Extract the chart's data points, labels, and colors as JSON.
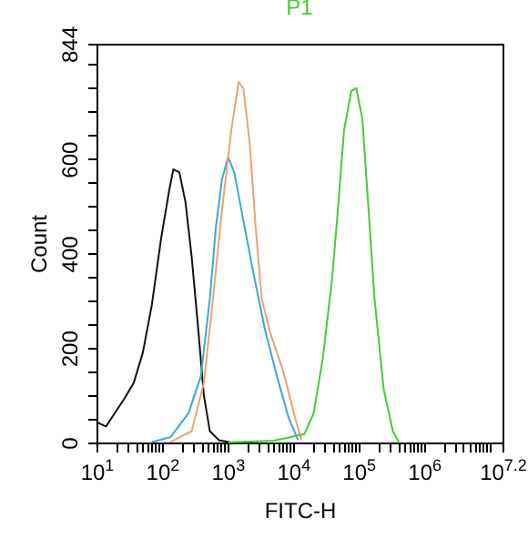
{
  "chart_data": {
    "type": "line",
    "title": "P1",
    "xlabel": "FITC-H",
    "ylabel": "Count",
    "log": "x",
    "grid": false,
    "legend": false,
    "marker": "none",
    "line_style": "solid",
    "xlim": [
      10,
      15848932
    ],
    "ylim": [
      0,
      844
    ],
    "xticks": [
      {
        "value": 10,
        "label": "10$^{1}$"
      },
      {
        "value": 20,
        "label": null
      },
      {
        "value": 30,
        "label": null
      },
      {
        "value": 40,
        "label": null
      },
      {
        "value": 50,
        "label": null
      },
      {
        "value": 60,
        "label": null
      },
      {
        "value": 70,
        "label": null
      },
      {
        "value": 80,
        "label": null
      },
      {
        "value": 90,
        "label": null
      },
      {
        "value": 100,
        "label": "10$^{2}$"
      },
      {
        "value": 200,
        "label": null
      },
      {
        "value": 300,
        "label": null
      },
      {
        "value": 400,
        "label": null
      },
      {
        "value": 500,
        "label": null
      },
      {
        "value": 600,
        "label": null
      },
      {
        "value": 700,
        "label": null
      },
      {
        "value": 800,
        "label": null
      },
      {
        "value": 900,
        "label": null
      },
      {
        "value": 1000,
        "label": "10$^{3}$"
      },
      {
        "value": 2000,
        "label": null
      },
      {
        "value": 3000,
        "label": null
      },
      {
        "value": 4000,
        "label": null
      },
      {
        "value": 5000,
        "label": null
      },
      {
        "value": 6000,
        "label": null
      },
      {
        "value": 7000,
        "label": null
      },
      {
        "value": 8000,
        "label": null
      },
      {
        "value": 9000,
        "label": null
      },
      {
        "value": 10000,
        "label": "10$^{4}$"
      },
      {
        "value": 20000,
        "label": null
      },
      {
        "value": 30000,
        "label": null
      },
      {
        "value": 40000,
        "label": null
      },
      {
        "value": 50000,
        "label": null
      },
      {
        "value": 60000,
        "label": null
      },
      {
        "value": 70000,
        "label": null
      },
      {
        "value": 80000,
        "label": null
      },
      {
        "value": 90000,
        "label": null
      },
      {
        "value": 100000,
        "label": "10$^{5}$"
      },
      {
        "value": 200000,
        "label": null
      },
      {
        "value": 300000,
        "label": null
      },
      {
        "value": 400000,
        "label": null
      },
      {
        "value": 500000,
        "label": null
      },
      {
        "value": 600000,
        "label": null
      },
      {
        "value": 700000,
        "label": null
      },
      {
        "value": 800000,
        "label": null
      },
      {
        "value": 900000,
        "label": null
      },
      {
        "value": 1000000,
        "label": "10$^{6}$"
      },
      {
        "value": 2000000,
        "label": null
      },
      {
        "value": 3000000,
        "label": null
      },
      {
        "value": 4000000,
        "label": null
      },
      {
        "value": 5000000,
        "label": null
      },
      {
        "value": 6000000,
        "label": null
      },
      {
        "value": 7000000,
        "label": null
      },
      {
        "value": 8000000,
        "label": null
      },
      {
        "value": 9000000,
        "label": null
      },
      {
        "value": 10000000,
        "label": null
      },
      {
        "value": 15848932,
        "label": "10$^{7.2}$"
      }
    ],
    "yticks": [
      0,
      {
        "value": 50,
        "label": null
      },
      {
        "value": 100,
        "label": null
      },
      {
        "value": 150,
        "label": null
      },
      200,
      {
        "value": 250,
        "label": null
      },
      {
        "value": 300,
        "label": null
      },
      {
        "value": 350,
        "label": null
      },
      400,
      {
        "value": 450,
        "label": null
      },
      {
        "value": 500,
        "label": null
      },
      {
        "value": 550,
        "label": null
      },
      600,
      {
        "value": 650,
        "label": null
      },
      {
        "value": 700,
        "label": null
      },
      {
        "value": 750,
        "label": null
      },
      {
        "value": 800,
        "label": null
      },
      844
    ],
    "series": [
      {
        "color": "#111111",
        "x": [
          10,
          14,
          19,
          27,
          37,
          51,
          70,
          97,
          129,
          149,
          184,
          229,
          284,
          351,
          436,
          538,
          740,
          1150
        ],
        "values": [
          43,
          34,
          62,
          94,
          126,
          190,
          291,
          432,
          534,
          578,
          572,
          508,
          393,
          253,
          100,
          24,
          5,
          0
        ]
      },
      {
        "color": "#3aa8d8",
        "x": [
          70,
          134,
          254,
          391,
          538,
          667,
          830,
          1026,
          1268,
          1750,
          2415,
          3712,
          5714,
          8710,
          12000
        ],
        "values": [
          1,
          11,
          62,
          139,
          304,
          457,
          559,
          604,
          572,
          470,
          368,
          241,
          139,
          50,
          5
        ]
      },
      {
        "color": "#f0a070",
        "x": [
          134,
          284,
          436,
          600,
          830,
          1146,
          1480,
          1750,
          2180,
          2690,
          3330,
          4590,
          7080,
          10870,
          13430
        ],
        "values": [
          1,
          24,
          126,
          304,
          495,
          661,
          763,
          750,
          635,
          457,
          304,
          228,
          152,
          50,
          5
        ]
      },
      {
        "color": "#44cc33",
        "x": [
          1020,
          5120,
          15000,
          20700,
          28500,
          39400,
          48700,
          60300,
          77800,
          92500,
          114600,
          142500,
          176200,
          242800,
          335000,
          414000
        ],
        "values": [
          0,
          4,
          18,
          62,
          177,
          343,
          495,
          661,
          744,
          750,
          686,
          495,
          304,
          113,
          24,
          1
        ]
      }
    ]
  }
}
